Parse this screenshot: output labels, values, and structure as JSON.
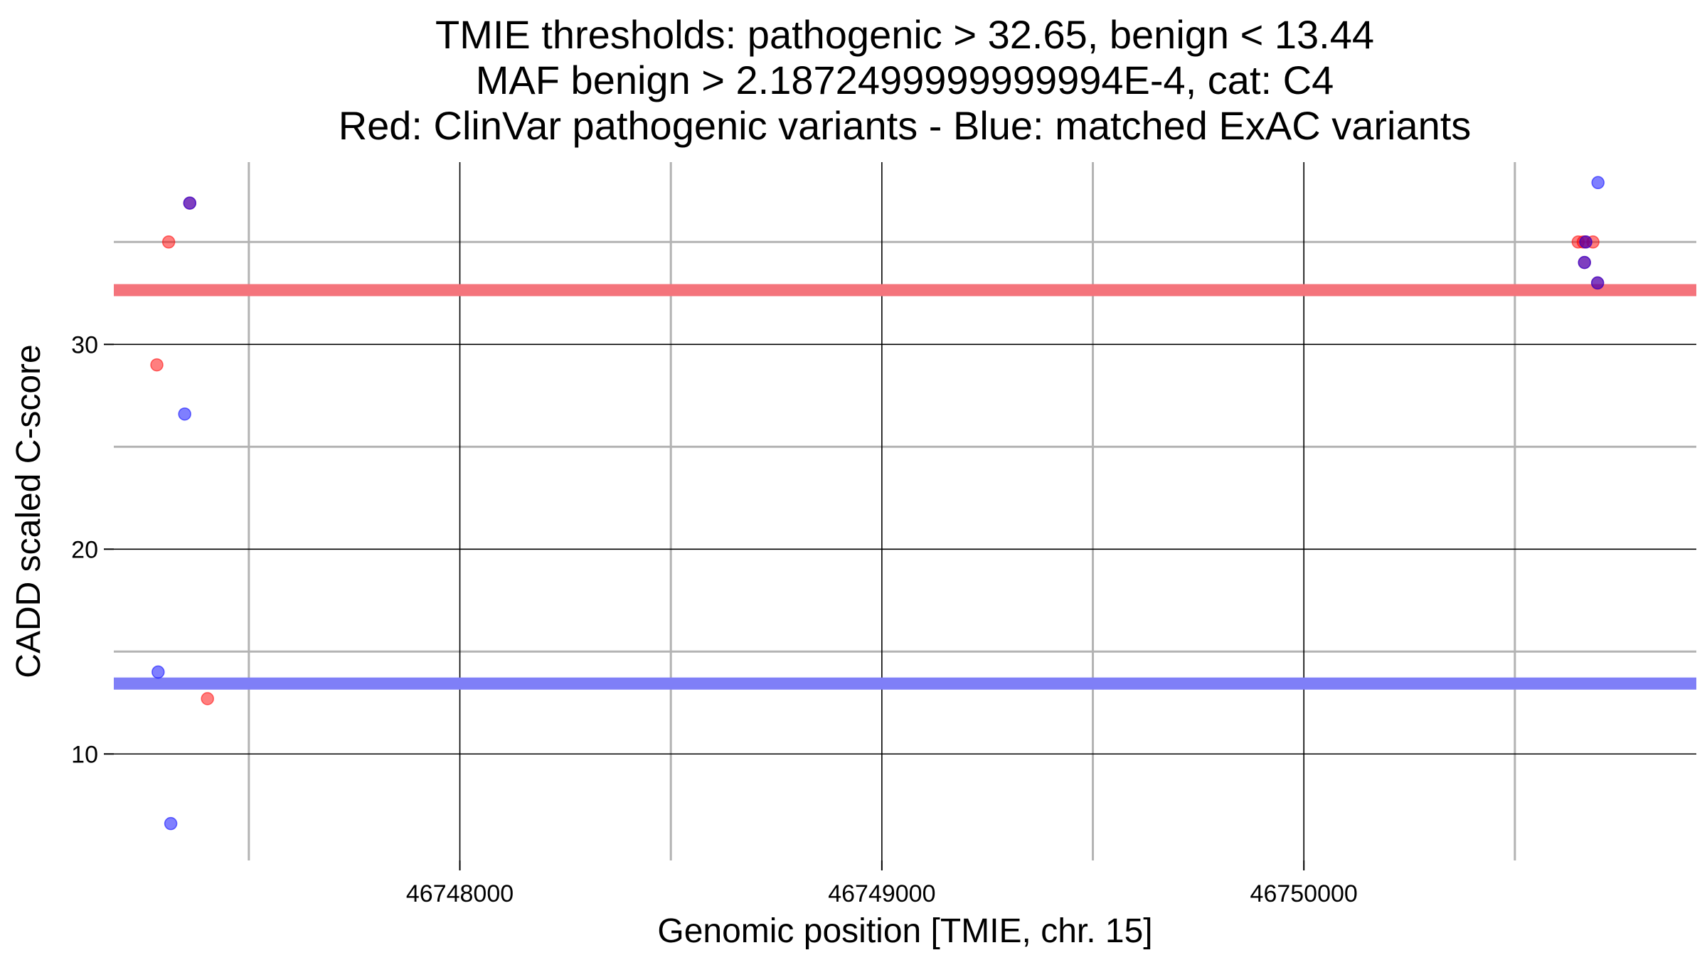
{
  "chart_data": {
    "type": "scatter",
    "title_lines": [
      "TMIE thresholds: pathogenic > 32.65, benign < 13.44",
      "MAF benign > 2.1872499999999994E-4, cat: C4",
      "Red: ClinVar pathogenic variants - Blue: matched ExAC variants"
    ],
    "xlabel": "Genomic position [TMIE, chr. 15]",
    "ylabel": "CADD scaled C-score",
    "xlim": [
      46747180,
      46750930
    ],
    "ylim": [
      4.8,
      38.9
    ],
    "x_ticks": [
      46748000,
      46749000,
      46750000
    ],
    "x_tick_labels": [
      "46748000",
      "46749000",
      "46750000"
    ],
    "x_minor_grid": [
      46747500,
      46748500,
      46749500,
      46750500
    ],
    "y_ticks": [
      10,
      20,
      30
    ],
    "y_tick_labels": [
      "10",
      "20",
      "30"
    ],
    "y_minor_grid": [
      15,
      25,
      35
    ],
    "grid": true,
    "legend": "none",
    "thresholds": [
      {
        "value": 32.65,
        "color": "#f4747c"
      },
      {
        "value": 13.44,
        "color": "#7f7ff7"
      }
    ],
    "series": [
      {
        "color": "#ff0000",
        "points": [
          {
            "x": 46747360,
            "y": 36.9
          },
          {
            "x": 46747310,
            "y": 35.0
          },
          {
            "x": 46747282,
            "y": 29.0
          },
          {
            "x": 46747402,
            "y": 12.7
          },
          {
            "x": 46750650,
            "y": 35.0
          },
          {
            "x": 46750662,
            "y": 35.0
          },
          {
            "x": 46750668,
            "y": 35.0
          },
          {
            "x": 46750685,
            "y": 35.0
          },
          {
            "x": 46750665,
            "y": 34.0
          },
          {
            "x": 46750696,
            "y": 33.0
          }
        ]
      },
      {
        "color": "#0000ff",
        "points": [
          {
            "x": 46747360,
            "y": 36.9
          },
          {
            "x": 46747348,
            "y": 26.6
          },
          {
            "x": 46747285,
            "y": 14.0
          },
          {
            "x": 46747315,
            "y": 6.6
          },
          {
            "x": 46750697,
            "y": 37.9
          },
          {
            "x": 46750696,
            "y": 33.0
          },
          {
            "x": 46750665,
            "y": 34.0
          },
          {
            "x": 46750668,
            "y": 35.0
          }
        ]
      }
    ]
  }
}
